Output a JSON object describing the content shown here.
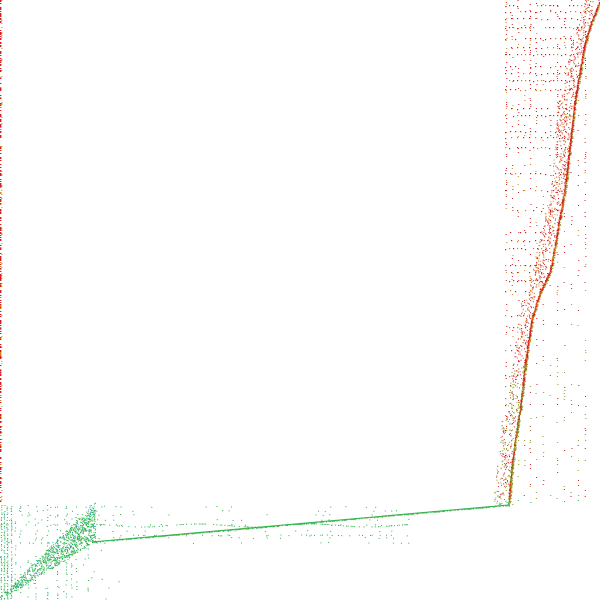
{
  "visualization": {
    "type": "sparse-matrix-pattern",
    "background_color": "#ffffff",
    "colors": {
      "red": "#d21f1f",
      "orange": "#d7801a",
      "olive": "#8f9a20",
      "green": "#2db34a",
      "cyan": "#2fa9c7",
      "blue": "#3c79d8"
    },
    "legend": [],
    "title": "",
    "labels": []
  }
}
